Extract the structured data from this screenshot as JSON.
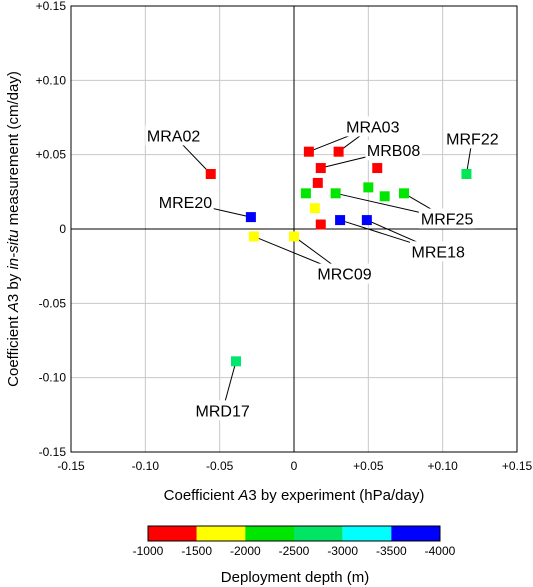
{
  "chart_data": {
    "type": "scatter",
    "title": "",
    "xlabel_parts": [
      "Coefficient ",
      "A",
      "3 by experiment (hPa/day)"
    ],
    "ylabel_parts": [
      "Coefficient ",
      "A",
      "3 by ",
      "in-situ",
      " measurement (cm/day)"
    ],
    "xlim": [
      -0.15,
      0.15
    ],
    "ylim": [
      -0.15,
      0.15
    ],
    "xticks": [
      -0.15,
      -0.1,
      -0.05,
      0,
      0.05,
      0.1,
      0.15
    ],
    "yticks": [
      -0.15,
      -0.1,
      -0.05,
      0,
      0.05,
      0.1,
      0.15
    ],
    "xtick_labels": [
      "-0.15",
      "-0.10",
      "-0.05",
      "0",
      "+0.05",
      "+0.10",
      "+0.15"
    ],
    "ytick_labels": [
      "-0.15",
      "-0.10",
      "-0.05",
      "0",
      "+0.05",
      "+0.10",
      "+0.15"
    ],
    "grid": true,
    "points": [
      {
        "x": -0.056,
        "y": 0.037,
        "color": "#ff0000"
      },
      {
        "x": 0.01,
        "y": 0.052,
        "color": "#ff0000"
      },
      {
        "x": 0.03,
        "y": 0.052,
        "color": "#ff0000"
      },
      {
        "x": 0.018,
        "y": 0.041,
        "color": "#ff0000"
      },
      {
        "x": 0.016,
        "y": 0.031,
        "color": "#ff0000"
      },
      {
        "x": 0.056,
        "y": 0.041,
        "color": "#ff0000"
      },
      {
        "x": 0.018,
        "y": 0.003,
        "color": "#ff0000"
      },
      {
        "x": 0.008,
        "y": 0.024,
        "color": "#00e600"
      },
      {
        "x": 0.028,
        "y": 0.024,
        "color": "#00e600"
      },
      {
        "x": 0.05,
        "y": 0.028,
        "color": "#00e600"
      },
      {
        "x": 0.061,
        "y": 0.022,
        "color": "#00e600"
      },
      {
        "x": 0.074,
        "y": 0.024,
        "color": "#00e600"
      },
      {
        "x": 0.116,
        "y": 0.037,
        "color": "#00e657"
      },
      {
        "x": 0.014,
        "y": 0.014,
        "color": "#ffff00"
      },
      {
        "x": -0.027,
        "y": -0.005,
        "color": "#ffff00"
      },
      {
        "x": 0.0,
        "y": -0.005,
        "color": "#ffff00"
      },
      {
        "x": -0.029,
        "y": 0.008,
        "color": "#0000ff"
      },
      {
        "x": 0.031,
        "y": 0.006,
        "color": "#0000ff"
      },
      {
        "x": 0.049,
        "y": 0.006,
        "color": "#0000ff"
      },
      {
        "x": -0.039,
        "y": -0.089,
        "color": "#00e66e"
      }
    ],
    "annotations": [
      {
        "text": "MRA02",
        "tx": -0.081,
        "ty": 0.063,
        "targets": [
          [
            -0.056,
            0.037
          ]
        ]
      },
      {
        "text": "MRA03",
        "tx": 0.053,
        "ty": 0.069,
        "targets": [
          [
            0.01,
            0.052
          ],
          [
            0.03,
            0.052
          ]
        ]
      },
      {
        "text": "MRB08",
        "tx": 0.067,
        "ty": 0.053,
        "targets": [
          [
            0.018,
            0.041
          ]
        ]
      },
      {
        "text": "MRF22",
        "tx": 0.12,
        "ty": 0.061,
        "targets": [
          [
            0.116,
            0.037
          ]
        ]
      },
      {
        "text": "MRF25",
        "tx": 0.103,
        "ty": 0.007,
        "targets": [
          [
            0.028,
            0.024
          ],
          [
            0.074,
            0.024
          ]
        ]
      },
      {
        "text": "MRE20",
        "tx": -0.073,
        "ty": 0.018,
        "targets": [
          [
            -0.029,
            0.008
          ]
        ]
      },
      {
        "text": "MRE18",
        "tx": 0.097,
        "ty": -0.015,
        "targets": [
          [
            0.031,
            0.006
          ],
          [
            0.049,
            0.006
          ]
        ]
      },
      {
        "text": "MRC09",
        "tx": 0.034,
        "ty": -0.03,
        "targets": [
          [
            -0.027,
            -0.005
          ],
          [
            0.0,
            -0.005
          ]
        ]
      },
      {
        "text": "MRD17",
        "tx": -0.048,
        "ty": -0.122,
        "targets": [
          [
            -0.039,
            -0.089
          ]
        ]
      }
    ],
    "colorbar": {
      "title": "Deployment depth (m)",
      "segments": [
        "#ff0000",
        "#ffff00",
        "#00e600",
        "#00e664",
        "#00ffff",
        "#0000ff"
      ],
      "tick_labels": [
        "-1000",
        "-1500",
        "-2000",
        "-2500",
        "-3000",
        "-3500",
        "-4000"
      ]
    }
  }
}
